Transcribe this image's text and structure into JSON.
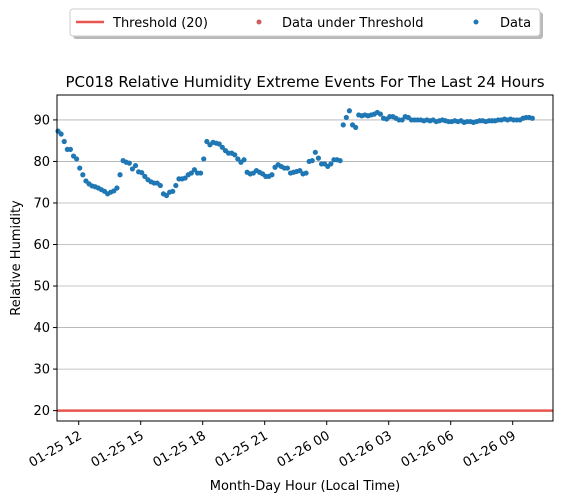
{
  "chart_data": {
    "type": "scatter",
    "title": "PC018 Relative Humidity Extreme Events For The Last 24 Hours",
    "xlabel": "Month-Day Hour (Local Time)",
    "ylabel": "Relative Humidity",
    "x_tick_labels": [
      "01-25 12",
      "01-25 15",
      "01-25 18",
      "01-25 21",
      "01-26 00",
      "01-26 03",
      "01-26 06",
      "01-26 09"
    ],
    "x_tick_hours": [
      12,
      15,
      18,
      21,
      24,
      27,
      30,
      33
    ],
    "x_range_hours": [
      10.95,
      34.95
    ],
    "y_ticks": [
      20,
      30,
      40,
      50,
      60,
      70,
      80,
      90
    ],
    "ylim": [
      17.5,
      96
    ],
    "grid": "horizontal",
    "legend": {
      "placement": "top-center",
      "columns": 3,
      "frame": true
    },
    "colors": {
      "threshold": "#e8554e",
      "under": "#cd5c5c",
      "data": "#1f77b4"
    },
    "series": [
      {
        "name": "Threshold (20)",
        "kind": "line",
        "value": 20
      },
      {
        "name": "Data under Threshold",
        "kind": "scatter",
        "points": []
      },
      {
        "name": "Data",
        "kind": "scatter",
        "points": [
          [
            11.0,
            87.3
          ],
          [
            11.15,
            86.6
          ],
          [
            11.3,
            84.8
          ],
          [
            11.45,
            82.9
          ],
          [
            11.6,
            82.9
          ],
          [
            11.75,
            81.3
          ],
          [
            11.9,
            80.6
          ],
          [
            12.05,
            78.4
          ],
          [
            12.2,
            76.8
          ],
          [
            12.35,
            75.3
          ],
          [
            12.5,
            74.6
          ],
          [
            12.65,
            74.1
          ],
          [
            12.8,
            73.9
          ],
          [
            12.95,
            73.6
          ],
          [
            13.1,
            73.2
          ],
          [
            13.25,
            72.8
          ],
          [
            13.4,
            72.2
          ],
          [
            13.55,
            72.6
          ],
          [
            13.7,
            72.9
          ],
          [
            13.85,
            73.6
          ],
          [
            14.0,
            76.8
          ],
          [
            14.15,
            80.2
          ],
          [
            14.3,
            79.8
          ],
          [
            14.45,
            79.6
          ],
          [
            14.6,
            78.2
          ],
          [
            14.75,
            79.0
          ],
          [
            14.9,
            77.5
          ],
          [
            15.05,
            77.3
          ],
          [
            15.2,
            76.4
          ],
          [
            15.35,
            75.6
          ],
          [
            15.5,
            75.1
          ],
          [
            15.65,
            74.8
          ],
          [
            15.8,
            74.8
          ],
          [
            15.95,
            74.2
          ],
          [
            16.1,
            72.2
          ],
          [
            16.25,
            71.8
          ],
          [
            16.4,
            72.6
          ],
          [
            16.55,
            72.8
          ],
          [
            16.7,
            74.2
          ],
          [
            16.85,
            75.8
          ],
          [
            17.0,
            75.8
          ],
          [
            17.15,
            76.0
          ],
          [
            17.3,
            76.8
          ],
          [
            17.45,
            77.2
          ],
          [
            17.6,
            78.0
          ],
          [
            17.75,
            77.2
          ],
          [
            17.9,
            77.2
          ],
          [
            18.05,
            80.6
          ],
          [
            18.2,
            84.8
          ],
          [
            18.35,
            84.0
          ],
          [
            18.5,
            84.6
          ],
          [
            18.65,
            84.4
          ],
          [
            18.8,
            84.2
          ],
          [
            18.95,
            83.4
          ],
          [
            19.1,
            82.6
          ],
          [
            19.25,
            82.0
          ],
          [
            19.4,
            82.0
          ],
          [
            19.55,
            81.6
          ],
          [
            19.7,
            80.6
          ],
          [
            19.85,
            79.8
          ],
          [
            20.0,
            80.4
          ],
          [
            20.15,
            77.4
          ],
          [
            20.3,
            77.0
          ],
          [
            20.45,
            77.2
          ],
          [
            20.6,
            77.8
          ],
          [
            20.75,
            77.4
          ],
          [
            20.9,
            77.0
          ],
          [
            21.05,
            76.4
          ],
          [
            21.2,
            76.4
          ],
          [
            21.35,
            76.8
          ],
          [
            21.5,
            78.6
          ],
          [
            21.65,
            79.2
          ],
          [
            21.8,
            78.8
          ],
          [
            21.95,
            78.4
          ],
          [
            22.1,
            78.4
          ],
          [
            22.25,
            77.2
          ],
          [
            22.4,
            77.4
          ],
          [
            22.55,
            77.6
          ],
          [
            22.7,
            77.8
          ],
          [
            22.85,
            77.0
          ],
          [
            23.0,
            77.2
          ],
          [
            23.15,
            80.0
          ],
          [
            23.3,
            80.2
          ],
          [
            23.45,
            82.2
          ],
          [
            23.6,
            80.8
          ],
          [
            23.75,
            79.4
          ],
          [
            23.9,
            79.4
          ],
          [
            24.05,
            78.8
          ],
          [
            24.2,
            79.4
          ],
          [
            24.35,
            80.4
          ],
          [
            24.5,
            80.4
          ],
          [
            24.65,
            80.2
          ],
          [
            24.8,
            88.8
          ],
          [
            24.95,
            90.6
          ],
          [
            25.1,
            92.2
          ],
          [
            25.25,
            88.8
          ],
          [
            25.4,
            88.2
          ],
          [
            25.55,
            91.2
          ],
          [
            25.7,
            91.0
          ],
          [
            25.85,
            91.2
          ],
          [
            26.0,
            91.0
          ],
          [
            26.15,
            91.2
          ],
          [
            26.3,
            91.4
          ],
          [
            26.45,
            91.8
          ],
          [
            26.6,
            91.4
          ],
          [
            26.75,
            90.4
          ],
          [
            26.9,
            90.2
          ],
          [
            27.05,
            90.8
          ],
          [
            27.2,
            90.8
          ],
          [
            27.35,
            90.4
          ],
          [
            27.5,
            90.0
          ],
          [
            27.65,
            90.0
          ],
          [
            27.8,
            90.8
          ],
          [
            27.95,
            90.6
          ],
          [
            28.1,
            90.0
          ],
          [
            28.25,
            90.0
          ],
          [
            28.4,
            90.0
          ],
          [
            28.55,
            90.0
          ],
          [
            28.7,
            89.8
          ],
          [
            28.85,
            90.0
          ],
          [
            29.0,
            89.8
          ],
          [
            29.15,
            90.0
          ],
          [
            29.3,
            89.6
          ],
          [
            29.45,
            89.8
          ],
          [
            29.6,
            90.0
          ],
          [
            29.75,
            89.8
          ],
          [
            29.9,
            89.6
          ],
          [
            30.05,
            89.6
          ],
          [
            30.2,
            89.8
          ],
          [
            30.35,
            89.6
          ],
          [
            30.5,
            89.8
          ],
          [
            30.65,
            89.4
          ],
          [
            30.8,
            89.6
          ],
          [
            30.95,
            89.6
          ],
          [
            31.1,
            89.4
          ],
          [
            31.25,
            89.6
          ],
          [
            31.4,
            89.8
          ],
          [
            31.55,
            89.8
          ],
          [
            31.7,
            89.6
          ],
          [
            31.85,
            89.8
          ],
          [
            32.0,
            89.8
          ],
          [
            32.15,
            89.8
          ],
          [
            32.3,
            90.0
          ],
          [
            32.45,
            90.0
          ],
          [
            32.6,
            90.2
          ],
          [
            32.75,
            90.0
          ],
          [
            32.9,
            90.2
          ],
          [
            33.05,
            90.0
          ],
          [
            33.2,
            90.0
          ],
          [
            33.35,
            90.0
          ],
          [
            33.5,
            90.4
          ],
          [
            33.65,
            90.6
          ],
          [
            33.8,
            90.6
          ],
          [
            33.95,
            90.4
          ]
        ]
      }
    ]
  }
}
